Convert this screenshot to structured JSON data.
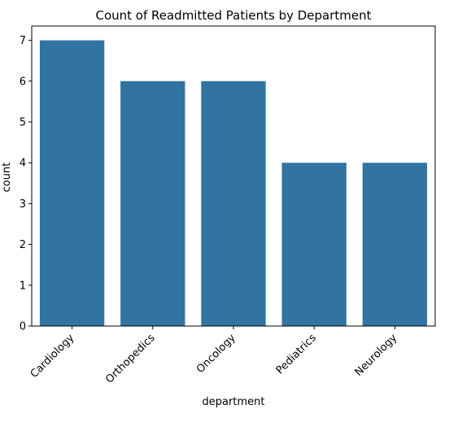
{
  "chart_data": {
    "type": "bar",
    "title": "Count of Readmitted Patients by Department",
    "xlabel": "department",
    "ylabel": "count",
    "categories": [
      "Cardiology",
      "Orthopedics",
      "Oncology",
      "Pediatrics",
      "Neurology"
    ],
    "values": [
      7,
      6,
      6,
      4,
      4
    ],
    "ylim": [
      0,
      7.35
    ],
    "yticks": [
      0,
      1,
      2,
      3,
      4,
      5,
      6,
      7
    ],
    "grid": false,
    "bar_color": "#3274a1"
  }
}
